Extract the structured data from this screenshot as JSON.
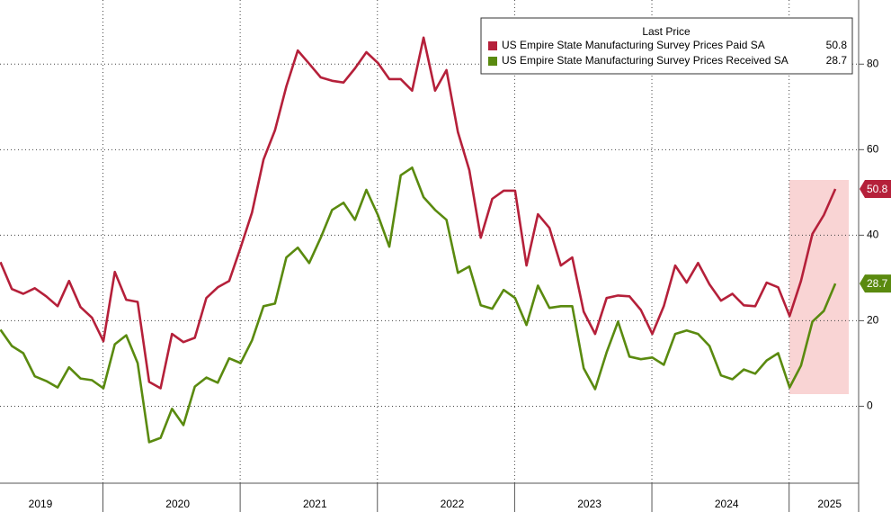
{
  "chart_data": {
    "type": "line",
    "legend_title": "Last Price",
    "categories": [
      null,
      null,
      null,
      "2019",
      null,
      null,
      null,
      null,
      null,
      null,
      null,
      null,
      null,
      null,
      null,
      "2020",
      null,
      null,
      null,
      null,
      null,
      null,
      null,
      null,
      null,
      null,
      null,
      "2021",
      null,
      null,
      null,
      null,
      null,
      null,
      null,
      null,
      null,
      null,
      null,
      "2022",
      null,
      null,
      null,
      null,
      null,
      null,
      null,
      null,
      null,
      null,
      null,
      "2023",
      null,
      null,
      null,
      null,
      null,
      null,
      null,
      null,
      null,
      null,
      null,
      "2024",
      null,
      null,
      null,
      null,
      null,
      null,
      null,
      null,
      "2025",
      null
    ],
    "series": [
      {
        "name": "US Empire State Manufacturing Survey Prices Paid SA",
        "color": "#b5203a",
        "values": [
          33.7,
          27.4,
          26.3,
          27.6,
          25.7,
          23.4,
          29.3,
          23.2,
          20.7,
          15.2,
          31.4,
          24.9,
          24.4,
          5.7,
          4.2,
          16.9,
          15.0,
          16.0,
          25.3,
          27.8,
          29.3,
          37.1,
          45.3,
          57.7,
          64.5,
          74.8,
          83.2,
          80.1,
          76.9,
          76.1,
          75.7,
          79.0,
          82.8,
          80.3,
          76.5,
          76.5,
          73.8,
          86.2,
          73.8,
          78.6,
          64.1,
          55.2,
          39.4,
          48.5,
          50.4,
          50.4,
          32.9,
          44.9,
          41.7,
          32.9,
          34.8,
          22.1,
          16.9,
          25.3,
          25.9,
          25.7,
          22.5,
          16.9,
          23.4,
          32.9,
          28.9,
          33.5,
          28.5,
          24.7,
          26.3,
          23.6,
          23.4,
          28.9,
          27.8,
          21.1,
          29.3,
          40.3,
          44.7,
          50.8
        ]
      },
      {
        "name": "US Empire State Manufacturing Survey Prices Received SA",
        "color": "#5a8a0f",
        "values": [
          17.9,
          14.1,
          12.4,
          7.0,
          5.9,
          4.4,
          9.1,
          6.5,
          6.1,
          4.2,
          14.5,
          16.6,
          10.1,
          -8.4,
          -7.4,
          -0.6,
          -4.4,
          4.6,
          6.7,
          5.5,
          11.2,
          10.1,
          15.4,
          23.4,
          24.0,
          34.8,
          37.1,
          33.5,
          39.4,
          45.9,
          47.6,
          43.6,
          50.6,
          44.7,
          37.3,
          54.0,
          55.8,
          48.9,
          45.9,
          43.6,
          31.2,
          32.7,
          23.6,
          22.8,
          27.2,
          25.3,
          19.0,
          28.2,
          23.0,
          23.4,
          23.4,
          8.9,
          4.0,
          12.6,
          19.8,
          11.6,
          11.0,
          11.4,
          9.7,
          16.9,
          17.7,
          16.9,
          14.1,
          7.2,
          6.3,
          8.6,
          7.6,
          10.7,
          12.4,
          4.4,
          9.5,
          19.8,
          22.3,
          28.7
        ]
      }
    ],
    "ylim": [
      -18,
      95
    ],
    "yticks": [
      0,
      20,
      40,
      60,
      80
    ],
    "grid": true
  }
}
